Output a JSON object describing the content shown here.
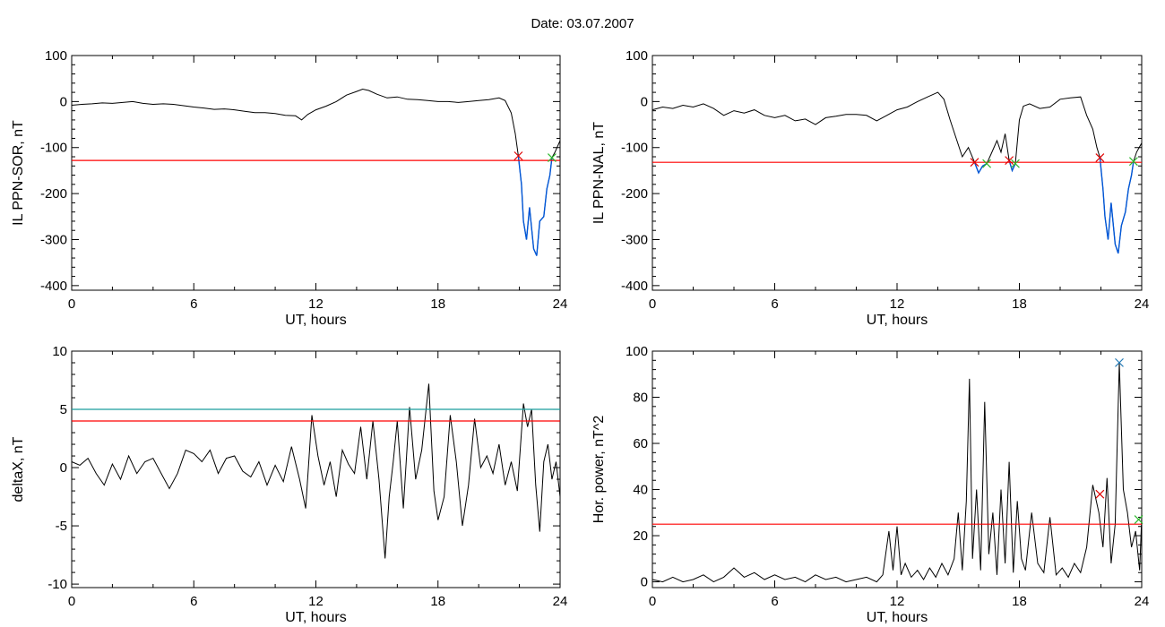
{
  "title": "Date:  03.07.2007",
  "colors": {
    "trace": "#000000",
    "threshold": "#ff0000",
    "threshold2": "#1a9e9e",
    "highlight": "#0057d8",
    "start_marker": "#e00000",
    "end_marker": "#2cb82c",
    "peak_marker": "#1f77b4"
  },
  "chart_data": [
    {
      "id": "ppn-sor",
      "type": "line",
      "xlabel": "UT, hours",
      "ylabel": "IL PPN-SOR, nT",
      "xlim": [
        0,
        24
      ],
      "ylim": [
        -410,
        100
      ],
      "xticks": [
        0,
        6,
        12,
        18,
        24
      ],
      "yticks": [
        -400,
        -300,
        -200,
        -100,
        0,
        100
      ],
      "thresholds": [
        {
          "y": -128,
          "color": "threshold"
        }
      ],
      "highlight_segments": [
        [
          21.9,
          23.6
        ]
      ],
      "markers": [
        {
          "x": 21.95,
          "y": -118,
          "kind": "start"
        },
        {
          "x": 23.6,
          "y": -122,
          "kind": "end"
        }
      ],
      "series": [
        {
          "x": [
            0,
            0.5,
            1,
            1.5,
            2,
            2.5,
            3,
            3.5,
            4,
            4.5,
            5,
            5.5,
            6,
            6.5,
            7,
            7.5,
            8,
            8.5,
            9,
            9.5,
            10,
            10.5,
            11,
            11.3,
            11.6,
            12,
            12.5,
            13,
            13.5,
            14,
            14.3,
            14.6,
            15,
            15.5,
            16,
            16.5,
            17,
            17.5,
            18,
            18.5,
            19,
            19.5,
            20,
            20.5,
            21,
            21.3,
            21.6,
            21.8,
            21.95,
            22.1,
            22.2,
            22.35,
            22.5,
            22.7,
            22.85,
            23.0,
            23.2,
            23.35,
            23.5,
            23.6,
            23.75,
            24.0
          ],
          "y": [
            -8,
            -6,
            -5,
            -3,
            -4,
            -2,
            0,
            -4,
            -6,
            -5,
            -6,
            -9,
            -12,
            -14,
            -17,
            -16,
            -18,
            -21,
            -24,
            -24,
            -26,
            -30,
            -31,
            -40,
            -28,
            -18,
            -10,
            0,
            14,
            22,
            27,
            24,
            16,
            8,
            10,
            5,
            4,
            2,
            0,
            0,
            -2,
            0,
            2,
            4,
            8,
            2,
            -25,
            -70,
            -118,
            -180,
            -260,
            -300,
            -230,
            -320,
            -335,
            -260,
            -250,
            -190,
            -160,
            -122,
            -110,
            -85
          ]
        }
      ]
    },
    {
      "id": "ppn-nal",
      "type": "line",
      "xlabel": "UT, hours",
      "ylabel": "IL PPN-NAL, nT",
      "xlim": [
        0,
        24
      ],
      "ylim": [
        -410,
        100
      ],
      "xticks": [
        0,
        6,
        12,
        18,
        24
      ],
      "yticks": [
        -400,
        -300,
        -200,
        -100,
        0,
        100
      ],
      "thresholds": [
        {
          "y": -132,
          "color": "threshold"
        }
      ],
      "highlight_segments": [
        [
          15.8,
          16.4
        ],
        [
          17.5,
          17.8
        ],
        [
          21.9,
          23.6
        ]
      ],
      "markers": [
        {
          "x": 15.8,
          "y": -132,
          "kind": "start"
        },
        {
          "x": 16.4,
          "y": -135,
          "kind": "end"
        },
        {
          "x": 17.5,
          "y": -128,
          "kind": "start"
        },
        {
          "x": 17.8,
          "y": -135,
          "kind": "end"
        },
        {
          "x": 21.95,
          "y": -122,
          "kind": "start"
        },
        {
          "x": 23.6,
          "y": -130,
          "kind": "end"
        }
      ],
      "series": [
        {
          "x": [
            0,
            0.5,
            1,
            1.5,
            2,
            2.5,
            3,
            3.5,
            4,
            4.5,
            5,
            5.5,
            6,
            6.5,
            7,
            7.5,
            8,
            8.5,
            9,
            9.5,
            10,
            10.5,
            11,
            11.5,
            12,
            12.5,
            13,
            13.5,
            14,
            14.3,
            14.6,
            14.9,
            15.2,
            15.5,
            15.8,
            16.0,
            16.2,
            16.4,
            16.6,
            16.9,
            17.1,
            17.3,
            17.5,
            17.65,
            17.8,
            18.0,
            18.2,
            18.5,
            19,
            19.5,
            20,
            20.5,
            21,
            21.3,
            21.6,
            21.8,
            21.95,
            22.1,
            22.2,
            22.35,
            22.5,
            22.7,
            22.85,
            23.0,
            23.2,
            23.35,
            23.5,
            23.6,
            23.75,
            24.0
          ],
          "y": [
            -18,
            -12,
            -15,
            -8,
            -12,
            -5,
            -15,
            -30,
            -20,
            -25,
            -18,
            -30,
            -35,
            -30,
            -42,
            -38,
            -50,
            -35,
            -32,
            -28,
            -28,
            -30,
            -42,
            -30,
            -18,
            -12,
            0,
            10,
            20,
            5,
            -40,
            -80,
            -120,
            -100,
            -132,
            -155,
            -140,
            -135,
            -115,
            -85,
            -110,
            -70,
            -128,
            -150,
            -135,
            -40,
            -10,
            -5,
            -15,
            -12,
            5,
            8,
            10,
            -30,
            -60,
            -100,
            -122,
            -190,
            -250,
            -300,
            -220,
            -310,
            -330,
            -270,
            -240,
            -190,
            -160,
            -130,
            -110,
            -90
          ]
        }
      ]
    },
    {
      "id": "deltax",
      "type": "line",
      "xlabel": "UT, hours",
      "ylabel": "deltaX, nT",
      "xlim": [
        0,
        24
      ],
      "ylim": [
        -10.3,
        10
      ],
      "xticks": [
        0,
        6,
        12,
        18,
        24
      ],
      "yticks": [
        -10,
        -5,
        0,
        5,
        10
      ],
      "thresholds": [
        {
          "y": 5,
          "color": "threshold2"
        },
        {
          "y": 4,
          "color": "threshold"
        }
      ],
      "highlight_segments": [],
      "markers": [],
      "series": [
        {
          "x": [
            0,
            0.4,
            0.8,
            1.2,
            1.6,
            2.0,
            2.4,
            2.8,
            3.2,
            3.6,
            4.0,
            4.4,
            4.8,
            5.2,
            5.6,
            6.0,
            6.4,
            6.8,
            7.2,
            7.6,
            8.0,
            8.4,
            8.8,
            9.2,
            9.6,
            10.0,
            10.4,
            10.8,
            11.2,
            11.5,
            11.8,
            12.1,
            12.4,
            12.7,
            13.0,
            13.3,
            13.6,
            13.9,
            14.2,
            14.5,
            14.8,
            15.1,
            15.4,
            15.6,
            15.8,
            16.0,
            16.3,
            16.6,
            16.9,
            17.2,
            17.55,
            17.8,
            18.0,
            18.3,
            18.6,
            18.9,
            19.2,
            19.5,
            19.8,
            20.1,
            20.4,
            20.7,
            21.0,
            21.3,
            21.6,
            21.9,
            22.2,
            22.4,
            22.6,
            22.8,
            23.0,
            23.2,
            23.4,
            23.6,
            23.8,
            24.0
          ],
          "y": [
            0.5,
            0.2,
            0.8,
            -0.5,
            -1.5,
            0.3,
            -1.0,
            1.0,
            -0.5,
            0.5,
            0.8,
            -0.5,
            -1.8,
            -0.5,
            1.5,
            1.2,
            0.5,
            1.5,
            -0.5,
            0.8,
            1.0,
            -0.3,
            -0.8,
            0.5,
            -1.5,
            0.2,
            -1.2,
            1.8,
            -1.0,
            -3.5,
            4.5,
            1.0,
            -1.5,
            0.5,
            -2.5,
            1.5,
            0.3,
            -0.5,
            3.5,
            -1.0,
            4.0,
            -1.0,
            -7.8,
            -2.5,
            0.5,
            4.0,
            -3.5,
            5.2,
            -1.0,
            1.5,
            7.2,
            -2.0,
            -4.5,
            -2.5,
            4.5,
            0.5,
            -5.0,
            -1.5,
            4.2,
            0.0,
            1.0,
            -0.5,
            2.0,
            -1.5,
            0.5,
            -2.0,
            5.5,
            3.5,
            5.0,
            -1.5,
            -5.5,
            0.5,
            2.0,
            -1.0,
            0.5,
            -2.5
          ]
        }
      ]
    },
    {
      "id": "hor-power",
      "type": "line",
      "xlabel": "UT, hours",
      "ylabel": "Hor. power, nT^2",
      "xlim": [
        0,
        24
      ],
      "ylim": [
        -2.5,
        100
      ],
      "xticks": [
        0,
        6,
        12,
        18,
        24
      ],
      "yticks": [
        0,
        20,
        40,
        60,
        80,
        100
      ],
      "thresholds": [
        {
          "y": 25,
          "color": "threshold"
        }
      ],
      "highlight_segments": [],
      "markers": [
        {
          "x": 21.95,
          "y": 38,
          "kind": "start"
        },
        {
          "x": 22.9,
          "y": 95,
          "kind": "peak"
        },
        {
          "x": 23.85,
          "y": 27,
          "kind": "end"
        }
      ],
      "series": [
        {
          "x": [
            0,
            0.5,
            1,
            1.5,
            2,
            2.5,
            3,
            3.5,
            4,
            4.5,
            5,
            5.5,
            6,
            6.5,
            7,
            7.5,
            8,
            8.5,
            9,
            9.5,
            10,
            10.5,
            11,
            11.3,
            11.6,
            11.8,
            12.0,
            12.2,
            12.4,
            12.7,
            13.0,
            13.3,
            13.6,
            13.9,
            14.2,
            14.5,
            14.8,
            15.0,
            15.2,
            15.4,
            15.55,
            15.7,
            15.9,
            16.1,
            16.3,
            16.5,
            16.7,
            16.9,
            17.1,
            17.3,
            17.5,
            17.7,
            17.9,
            18.1,
            18.3,
            18.6,
            18.9,
            19.2,
            19.5,
            19.8,
            20.1,
            20.4,
            20.7,
            21.0,
            21.3,
            21.6,
            21.9,
            22.1,
            22.3,
            22.5,
            22.7,
            22.9,
            23.1,
            23.3,
            23.5,
            23.7,
            23.9,
            24.0
          ],
          "y": [
            1,
            0,
            2,
            0,
            1,
            3,
            0,
            2,
            6,
            2,
            4,
            1,
            3,
            1,
            2,
            0,
            3,
            1,
            2,
            0,
            1,
            2,
            0,
            3,
            22,
            5,
            24,
            3,
            8,
            2,
            5,
            1,
            6,
            2,
            8,
            3,
            10,
            30,
            5,
            35,
            88,
            10,
            40,
            5,
            78,
            12,
            30,
            3,
            40,
            8,
            52,
            4,
            35,
            10,
            5,
            30,
            8,
            4,
            28,
            3,
            6,
            2,
            8,
            4,
            15,
            42,
            30,
            15,
            45,
            8,
            25,
            95,
            40,
            30,
            15,
            22,
            5,
            28
          ]
        }
      ]
    }
  ]
}
